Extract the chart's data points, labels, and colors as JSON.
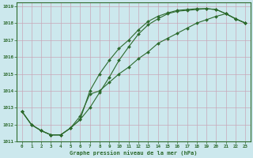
{
  "xlabel": "Graphe pression niveau de la mer (hPa)",
  "bg_color": "#cce8ed",
  "grid_color": "#b0d0d8",
  "line_color": "#2d6a2d",
  "xlim": [
    -0.5,
    23.5
  ],
  "ylim": [
    1011,
    1019.2
  ],
  "xticks": [
    0,
    1,
    2,
    3,
    4,
    5,
    6,
    7,
    8,
    9,
    10,
    11,
    12,
    13,
    14,
    15,
    16,
    17,
    18,
    19,
    20,
    21,
    22,
    23
  ],
  "yticks": [
    1011,
    1012,
    1013,
    1014,
    1015,
    1016,
    1017,
    1018,
    1019
  ],
  "line1_x": [
    0,
    1,
    2,
    3,
    4,
    5,
    6,
    7,
    8,
    9,
    10,
    11,
    12,
    13,
    14,
    15,
    16,
    17,
    18,
    19,
    20,
    21,
    22,
    23
  ],
  "line1_y": [
    1012.8,
    1012.0,
    1011.65,
    1011.4,
    1011.4,
    1011.8,
    1012.3,
    1013.0,
    1013.9,
    1014.8,
    1015.8,
    1016.6,
    1017.35,
    1017.9,
    1018.25,
    1018.55,
    1018.7,
    1018.75,
    1018.8,
    1018.85,
    1018.8,
    1018.55,
    1018.25,
    1018.0
  ],
  "line2_x": [
    0,
    1,
    2,
    3,
    4,
    5,
    6,
    7,
    8,
    9,
    10,
    11,
    12,
    13,
    14,
    15,
    16,
    17,
    18,
    19,
    20,
    21,
    22,
    23
  ],
  "line2_y": [
    1012.8,
    1012.0,
    1011.65,
    1011.4,
    1011.4,
    1011.8,
    1012.3,
    1014.0,
    1015.0,
    1015.8,
    1016.5,
    1017.0,
    1017.6,
    1018.1,
    1018.4,
    1018.6,
    1018.75,
    1018.8,
    1018.85,
    1018.85,
    1018.8,
    1018.55,
    1018.25,
    1018.0
  ],
  "line3_x": [
    0,
    1,
    2,
    3,
    4,
    5,
    6,
    7,
    8,
    9,
    10,
    11,
    12,
    13,
    14,
    15,
    16,
    17,
    18,
    19,
    20,
    21,
    22,
    23
  ],
  "line3_y": [
    1012.8,
    1012.0,
    1011.65,
    1011.4,
    1011.4,
    1011.8,
    1012.5,
    1013.8,
    1014.0,
    1014.5,
    1015.0,
    1015.4,
    1015.9,
    1016.3,
    1016.8,
    1017.1,
    1017.4,
    1017.7,
    1018.0,
    1018.2,
    1018.4,
    1018.55,
    1018.25,
    1018.0
  ],
  "markersize": 2.0,
  "linewidth": 0.8
}
